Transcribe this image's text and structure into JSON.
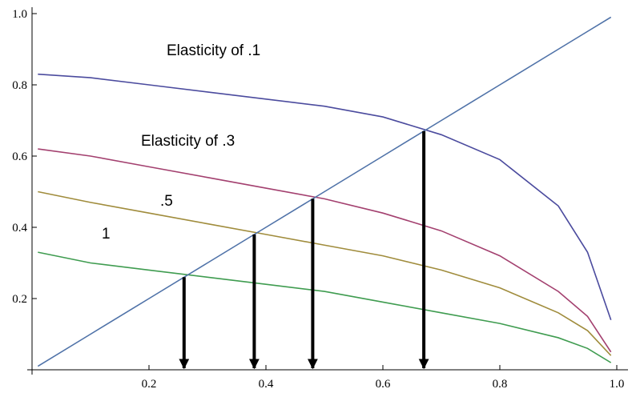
{
  "chart_data": {
    "type": "line",
    "x": [
      0.01,
      0.1,
      0.2,
      0.3,
      0.4,
      0.5,
      0.6,
      0.7,
      0.8,
      0.9,
      0.95,
      0.99
    ],
    "series": [
      {
        "color": "#4b4b9e",
        "values": [
          0.83,
          0.82,
          0.8,
          0.78,
          0.76,
          0.74,
          0.71,
          0.66,
          0.59,
          0.46,
          0.33,
          0.14
        ]
      },
      {
        "color": "#a3406f",
        "values": [
          0.62,
          0.6,
          0.57,
          0.54,
          0.51,
          0.48,
          0.44,
          0.39,
          0.32,
          0.22,
          0.15,
          0.05
        ]
      },
      {
        "color": "#a08c3c",
        "values": [
          0.5,
          0.47,
          0.44,
          0.41,
          0.38,
          0.35,
          0.32,
          0.28,
          0.23,
          0.16,
          0.11,
          0.04
        ]
      },
      {
        "color": "#3f9c50",
        "values": [
          0.33,
          0.3,
          0.28,
          0.26,
          0.24,
          0.22,
          0.19,
          0.16,
          0.13,
          0.09,
          0.06,
          0.02
        ]
      },
      {
        "color": "#4f72a8",
        "values": [
          0.01,
          0.1,
          0.2,
          0.3,
          0.4,
          0.5,
          0.6,
          0.7,
          0.8,
          0.9,
          0.95,
          0.99
        ]
      }
    ],
    "annotations": [
      "Elasticity of .1",
      "Elasticity of .3",
      ".5",
      "1"
    ],
    "arrows": [
      {
        "x": 0.26,
        "y_from": 0.26,
        "y_to": 0.0
      },
      {
        "x": 0.38,
        "y_from": 0.38,
        "y_to": 0.0
      },
      {
        "x": 0.48,
        "y_from": 0.48,
        "y_to": 0.0
      },
      {
        "x": 0.67,
        "y_from": 0.67,
        "y_to": 0.0
      }
    ],
    "xlim": [
      0,
      1
    ],
    "ylim": [
      0,
      1
    ],
    "xticks": [
      0.2,
      0.4,
      0.6,
      0.8,
      {
        "value": 1,
        "label": "1.0"
      }
    ],
    "yticks": [
      0.2,
      0.4,
      0.6,
      0.8,
      {
        "value": 1,
        "label": "1.0"
      }
    ],
    "grid": false
  }
}
